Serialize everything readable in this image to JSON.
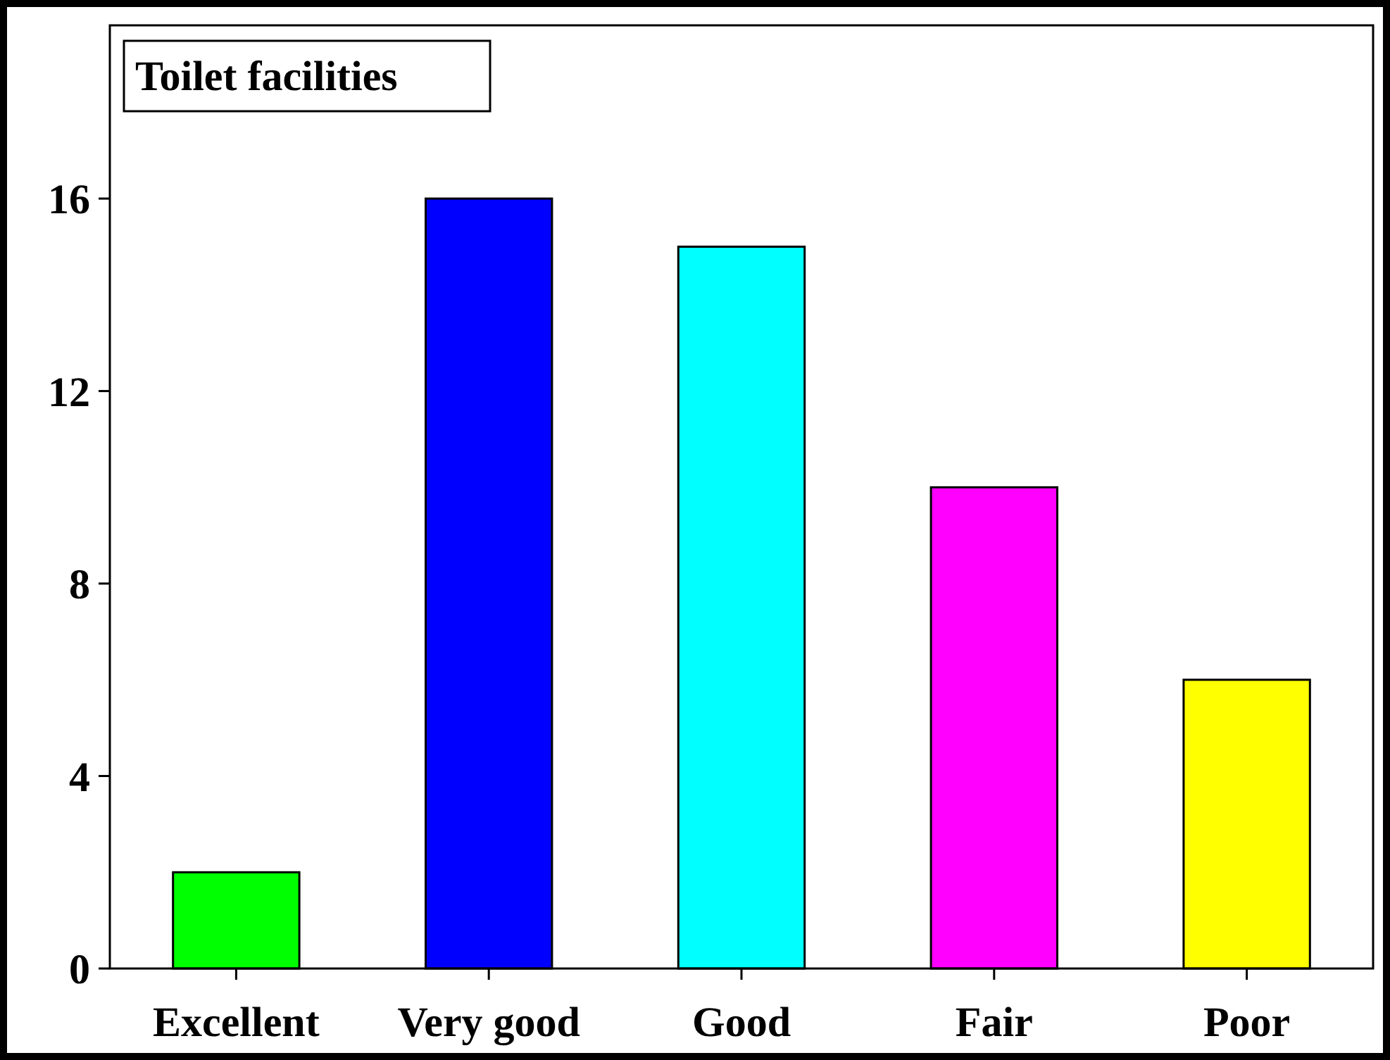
{
  "chart_data": {
    "type": "bar",
    "title": "Toilet facilities",
    "categories": [
      "Excellent",
      "Very good",
      "Good",
      "Fair",
      "Poor"
    ],
    "values": [
      2,
      16,
      15,
      10,
      6
    ],
    "colors": [
      "#00ff00",
      "#0000ff",
      "#00ffff",
      "#ff00ff",
      "#ffff00"
    ],
    "ylim": [
      0,
      19.6
    ],
    "yticks": [
      0,
      4,
      8,
      12,
      16
    ],
    "grid": false
  }
}
